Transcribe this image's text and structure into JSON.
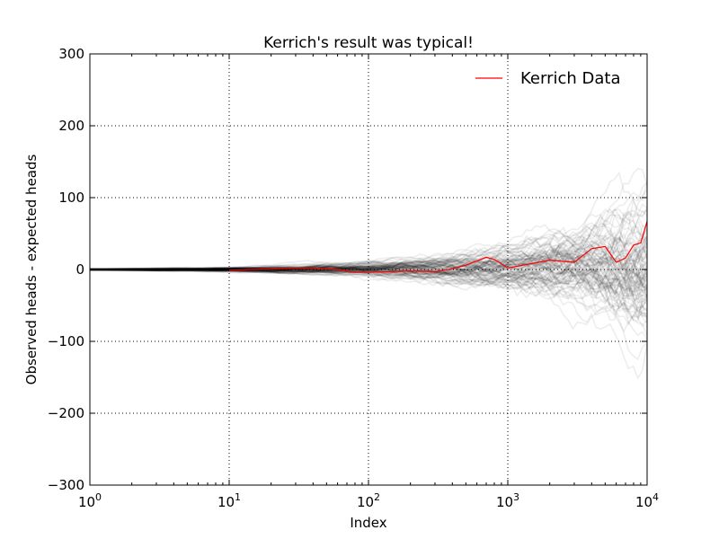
{
  "chart_data": {
    "type": "line",
    "title": "Kerrich's result was typical!",
    "xlabel": "Index",
    "ylabel": "Observed heads - expected heads",
    "x_scale": "log",
    "xlim": [
      1,
      10000
    ],
    "ylim": [
      -300,
      300
    ],
    "x_ticks": [
      {
        "base": "10",
        "exp": "0",
        "value": 1
      },
      {
        "base": "10",
        "exp": "1",
        "value": 10
      },
      {
        "base": "10",
        "exp": "2",
        "value": 100
      },
      {
        "base": "10",
        "exp": "3",
        "value": 1000
      },
      {
        "base": "10",
        "exp": "4",
        "value": 10000
      }
    ],
    "y_ticks": [
      {
        "label": "300",
        "value": 300
      },
      {
        "label": "200",
        "value": 200
      },
      {
        "label": "100",
        "value": 100
      },
      {
        "label": "0",
        "value": 0
      },
      {
        "label": "−100",
        "value": -100
      },
      {
        "label": "−200",
        "value": -200
      },
      {
        "label": "−300",
        "value": -300
      }
    ],
    "grid": true,
    "legend_position": "top-right",
    "background_series": {
      "description_count": 100,
      "color": "#000000",
      "opacity": 0.07
    },
    "series": [
      {
        "name": "Kerrich Data",
        "color": "#ff0000",
        "x": [
          10,
          20,
          30,
          40,
          50,
          60,
          70,
          80,
          90,
          100,
          200,
          300,
          400,
          500,
          600,
          700,
          800,
          900,
          1000,
          2000,
          3000,
          4000,
          5000,
          6000,
          7000,
          8000,
          9000,
          10000
        ],
        "y": [
          -1,
          1,
          2,
          2,
          1,
          0,
          -2,
          -4,
          -4,
          -4,
          -2,
          -3,
          1,
          6,
          12,
          17,
          14,
          8,
          2,
          13,
          10,
          29,
          32,
          10,
          16,
          34,
          37,
          67
        ]
      }
    ]
  }
}
